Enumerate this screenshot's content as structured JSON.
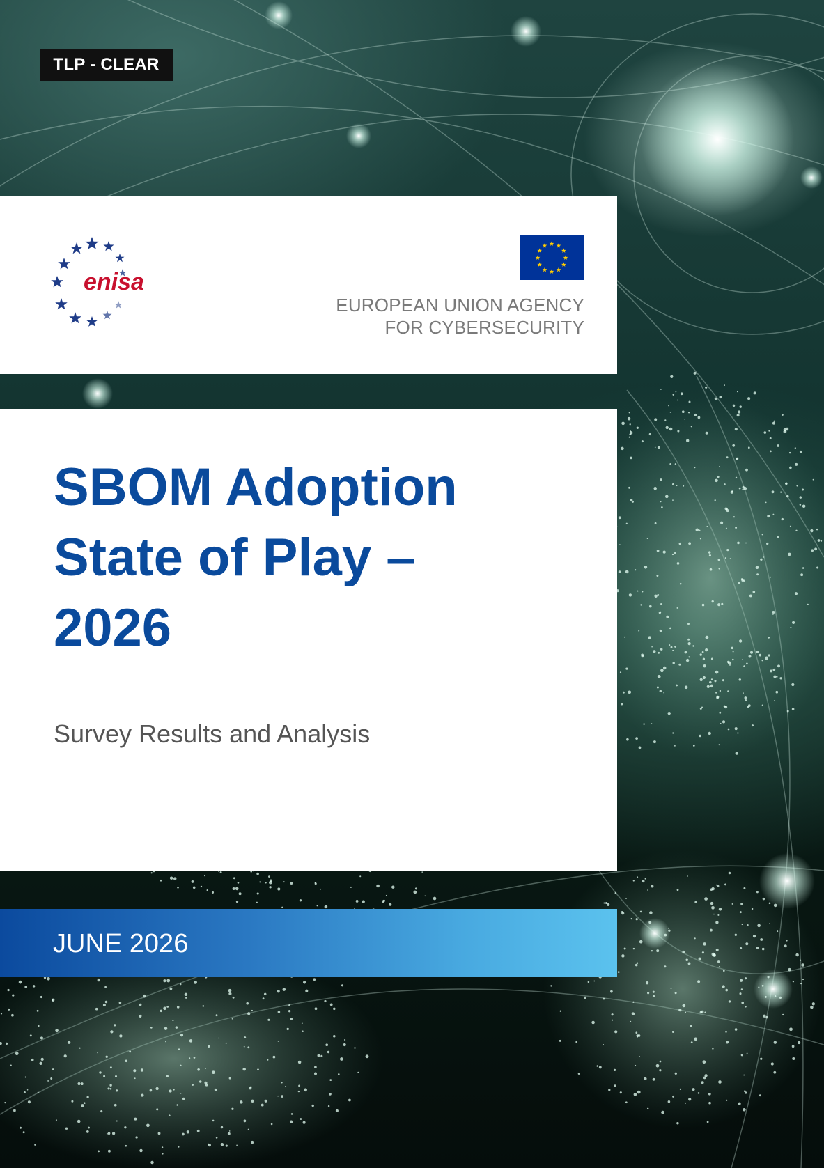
{
  "tlp_label": "TLP - CLEAR",
  "logo": {
    "name": "enisa",
    "icon": "enisa-star-circle-logo",
    "brand_color": "#c8102e",
    "star_color": "#1f3c88"
  },
  "eu_flag": {
    "icon": "eu-flag-icon",
    "blue": "#003399",
    "gold": "#ffcc00"
  },
  "agency": {
    "line1": "EUROPEAN UNION AGENCY",
    "line2": "FOR CYBERSECURITY"
  },
  "title": "SBOM Adoption\nState of Play –\n2026",
  "subtitle": "Survey Results and Analysis",
  "date": "JUNE 2026",
  "colors": {
    "title": "#0a4a9c",
    "date_band_start": "#0b4a9e",
    "date_band_end": "#5bc2ee"
  }
}
